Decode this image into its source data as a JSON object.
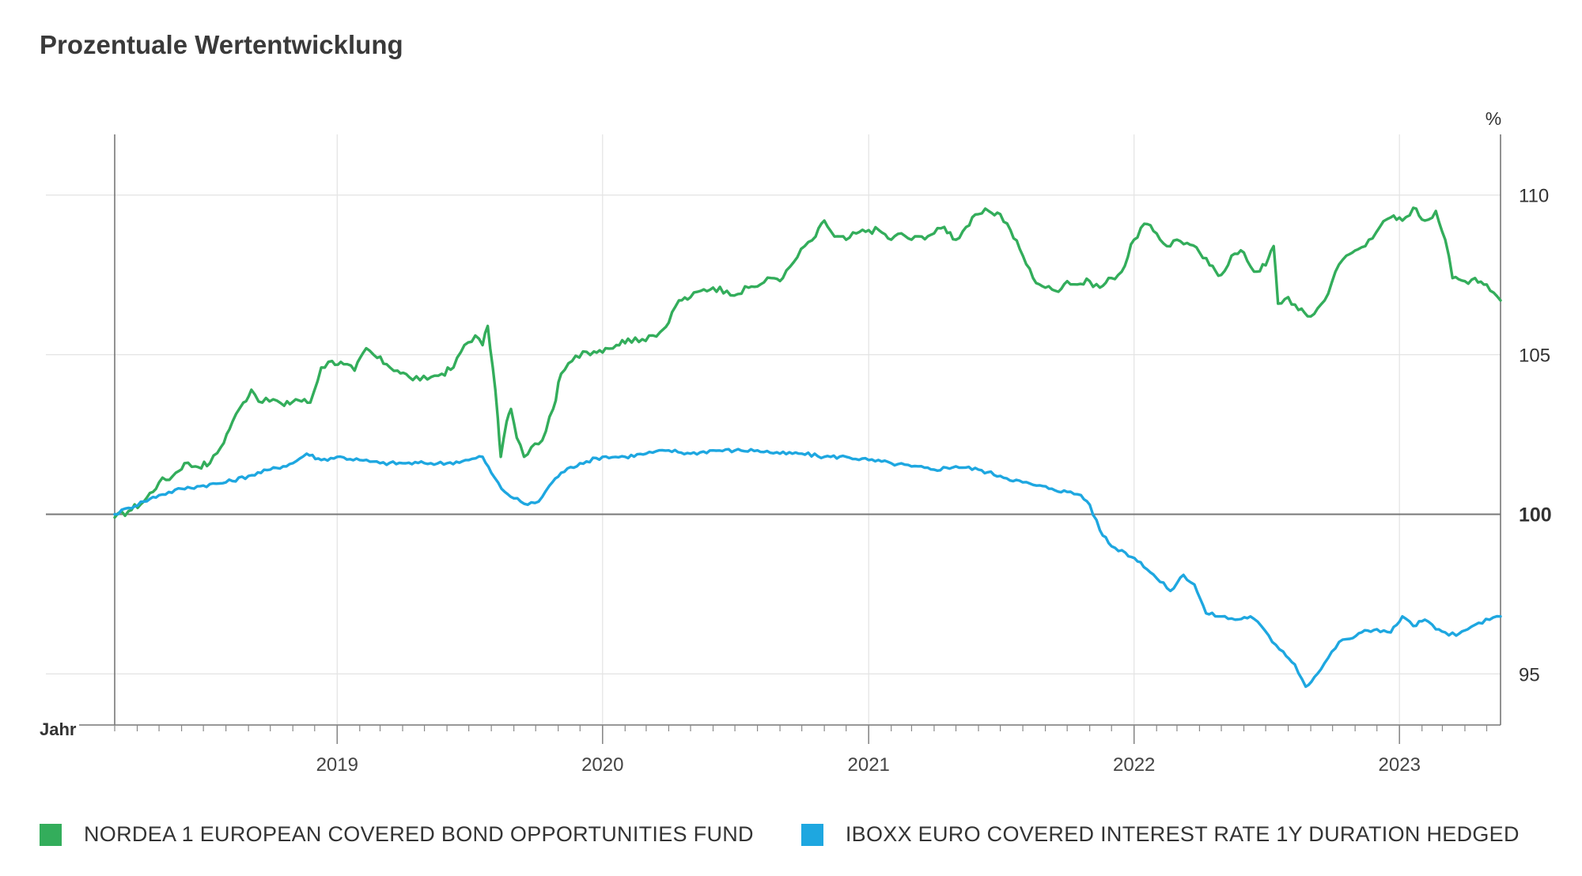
{
  "title": "Prozentuale Wertentwicklung",
  "chart_data": {
    "type": "line",
    "unit_label": "%",
    "x_axis_label": "Jahr",
    "x_tick_labels": [
      "2019",
      "2020",
      "2021",
      "2022",
      "2023"
    ],
    "x_ticks": [
      "2019-01-01",
      "2020-01-01",
      "2021-01-01",
      "2022-01-01",
      "2023-01-01"
    ],
    "xlim": [
      "2018-03-01",
      "2023-05-20"
    ],
    "y_tick_labels": [
      "110",
      "105",
      "100",
      "95"
    ],
    "y_ticks": [
      110,
      105,
      100,
      95
    ],
    "baseline": 100,
    "ylim": [
      93.4,
      111.9
    ],
    "grid": true,
    "legend_position": "bottom",
    "series": [
      {
        "name": "NORDEA 1 EUROPEAN COVERED BOND OPPORTUNITIES FUND",
        "color": "#33ad5b",
        "points": [
          [
            "2018-03-01",
            99.9
          ],
          [
            "2018-03-20",
            100.1
          ],
          [
            "2018-04-10",
            100.4
          ],
          [
            "2018-05-01",
            101.0
          ],
          [
            "2018-05-20",
            101.2
          ],
          [
            "2018-06-05",
            101.6
          ],
          [
            "2018-06-20",
            101.5
          ],
          [
            "2018-07-10",
            101.6
          ],
          [
            "2018-07-25",
            102.1
          ],
          [
            "2018-08-10",
            102.9
          ],
          [
            "2018-08-25",
            103.5
          ],
          [
            "2018-09-05",
            103.9
          ],
          [
            "2018-09-20",
            103.5
          ],
          [
            "2018-10-05",
            103.6
          ],
          [
            "2018-10-20",
            103.4
          ],
          [
            "2018-11-05",
            103.6
          ],
          [
            "2018-11-25",
            103.5
          ],
          [
            "2018-12-10",
            104.6
          ],
          [
            "2018-12-25",
            104.8
          ],
          [
            "2019-01-10",
            104.7
          ],
          [
            "2019-01-25",
            104.5
          ],
          [
            "2019-02-10",
            105.2
          ],
          [
            "2019-02-25",
            104.9
          ],
          [
            "2019-03-10",
            104.7
          ],
          [
            "2019-03-25",
            104.5
          ],
          [
            "2019-04-10",
            104.3
          ],
          [
            "2019-04-25",
            104.2
          ],
          [
            "2019-05-10",
            104.3
          ],
          [
            "2019-05-25",
            104.4
          ],
          [
            "2019-06-10",
            104.6
          ],
          [
            "2019-06-25",
            105.3
          ],
          [
            "2019-07-10",
            105.6
          ],
          [
            "2019-07-20",
            105.3
          ],
          [
            "2019-07-27",
            105.9
          ],
          [
            "2019-08-03",
            104.6
          ],
          [
            "2019-08-10",
            103.0
          ],
          [
            "2019-08-14",
            101.8
          ],
          [
            "2019-08-22",
            102.9
          ],
          [
            "2019-08-28",
            103.3
          ],
          [
            "2019-09-05",
            102.4
          ],
          [
            "2019-09-15",
            101.8
          ],
          [
            "2019-09-25",
            102.1
          ],
          [
            "2019-10-05",
            102.2
          ],
          [
            "2019-10-15",
            102.6
          ],
          [
            "2019-10-25",
            103.3
          ],
          [
            "2019-11-05",
            104.4
          ],
          [
            "2019-11-20",
            104.8
          ],
          [
            "2019-12-05",
            105.1
          ],
          [
            "2019-12-20",
            105.1
          ],
          [
            "2020-01-05",
            105.2
          ],
          [
            "2020-01-20",
            105.3
          ],
          [
            "2020-02-05",
            105.5
          ],
          [
            "2020-02-20",
            105.4
          ],
          [
            "2020-03-05",
            105.6
          ],
          [
            "2020-03-20",
            105.7
          ],
          [
            "2020-04-01",
            106.0
          ],
          [
            "2020-04-15",
            106.7
          ],
          [
            "2020-05-01",
            106.8
          ],
          [
            "2020-05-15",
            107.0
          ],
          [
            "2020-06-01",
            107.1
          ],
          [
            "2020-06-20",
            107.0
          ],
          [
            "2020-07-05",
            106.9
          ],
          [
            "2020-07-20",
            107.1
          ],
          [
            "2020-08-05",
            107.2
          ],
          [
            "2020-08-20",
            107.4
          ],
          [
            "2020-09-05",
            107.4
          ],
          [
            "2020-09-20",
            107.9
          ],
          [
            "2020-10-05",
            108.4
          ],
          [
            "2020-10-20",
            108.7
          ],
          [
            "2020-11-01",
            109.2
          ],
          [
            "2020-11-15",
            108.7
          ],
          [
            "2020-12-01",
            108.6
          ],
          [
            "2020-12-15",
            108.8
          ],
          [
            "2021-01-01",
            108.9
          ],
          [
            "2021-01-15",
            108.9
          ],
          [
            "2021-02-01",
            108.6
          ],
          [
            "2021-02-15",
            108.8
          ],
          [
            "2021-03-01",
            108.6
          ],
          [
            "2021-03-15",
            108.7
          ],
          [
            "2021-04-01",
            108.8
          ],
          [
            "2021-04-15",
            109.0
          ],
          [
            "2021-05-01",
            108.6
          ],
          [
            "2021-05-15",
            109.0
          ],
          [
            "2021-06-01",
            109.4
          ],
          [
            "2021-06-15",
            109.5
          ],
          [
            "2021-07-01",
            109.4
          ],
          [
            "2021-07-15",
            108.9
          ],
          [
            "2021-08-01",
            108.1
          ],
          [
            "2021-08-15",
            107.4
          ],
          [
            "2021-09-01",
            107.1
          ],
          [
            "2021-09-15",
            107.0
          ],
          [
            "2021-10-01",
            107.3
          ],
          [
            "2021-10-15",
            107.2
          ],
          [
            "2021-11-01",
            107.3
          ],
          [
            "2021-11-15",
            107.1
          ],
          [
            "2021-12-01",
            107.4
          ],
          [
            "2021-12-15",
            107.6
          ],
          [
            "2022-01-01",
            108.6
          ],
          [
            "2022-01-15",
            109.1
          ],
          [
            "2022-02-01",
            108.8
          ],
          [
            "2022-02-15",
            108.4
          ],
          [
            "2022-03-01",
            108.6
          ],
          [
            "2022-03-15",
            108.5
          ],
          [
            "2022-04-01",
            108.2
          ],
          [
            "2022-04-15",
            107.8
          ],
          [
            "2022-05-01",
            107.5
          ],
          [
            "2022-05-15",
            108.1
          ],
          [
            "2022-06-01",
            108.2
          ],
          [
            "2022-06-15",
            107.6
          ],
          [
            "2022-07-01",
            107.8
          ],
          [
            "2022-07-12",
            108.4
          ],
          [
            "2022-07-18",
            106.6
          ],
          [
            "2022-08-01",
            106.8
          ],
          [
            "2022-08-15",
            106.4
          ],
          [
            "2022-09-01",
            106.2
          ],
          [
            "2022-09-20",
            106.7
          ],
          [
            "2022-10-05",
            107.6
          ],
          [
            "2022-10-20",
            108.1
          ],
          [
            "2022-11-05",
            108.3
          ],
          [
            "2022-11-20",
            108.6
          ],
          [
            "2022-12-05",
            109.0
          ],
          [
            "2022-12-20",
            109.3
          ],
          [
            "2023-01-05",
            109.2
          ],
          [
            "2023-01-20",
            109.6
          ],
          [
            "2023-02-05",
            109.2
          ],
          [
            "2023-02-20",
            109.5
          ],
          [
            "2023-03-05",
            108.6
          ],
          [
            "2023-03-15",
            107.4
          ],
          [
            "2023-04-01",
            107.3
          ],
          [
            "2023-04-15",
            107.4
          ],
          [
            "2023-05-01",
            107.2
          ],
          [
            "2023-05-20",
            106.7
          ]
        ]
      },
      {
        "name": "IBOXX EURO COVERED INTEREST RATE 1Y DURATION HEDGED",
        "color": "#1ea7e0",
        "points": [
          [
            "2018-03-01",
            100.0
          ],
          [
            "2018-03-20",
            100.2
          ],
          [
            "2018-04-10",
            100.4
          ],
          [
            "2018-05-01",
            100.6
          ],
          [
            "2018-06-01",
            100.8
          ],
          [
            "2018-07-01",
            100.9
          ],
          [
            "2018-08-01",
            101.0
          ],
          [
            "2018-09-01",
            101.2
          ],
          [
            "2018-10-01",
            101.4
          ],
          [
            "2018-11-01",
            101.6
          ],
          [
            "2018-11-20",
            101.9
          ],
          [
            "2018-12-10",
            101.7
          ],
          [
            "2019-01-01",
            101.8
          ],
          [
            "2019-02-01",
            101.7
          ],
          [
            "2019-03-01",
            101.6
          ],
          [
            "2019-04-01",
            101.6
          ],
          [
            "2019-05-01",
            101.6
          ],
          [
            "2019-06-01",
            101.6
          ],
          [
            "2019-07-01",
            101.7
          ],
          [
            "2019-07-20",
            101.8
          ],
          [
            "2019-08-01",
            101.3
          ],
          [
            "2019-08-15",
            100.8
          ],
          [
            "2019-09-01",
            100.5
          ],
          [
            "2019-09-20",
            100.3
          ],
          [
            "2019-10-05",
            100.4
          ],
          [
            "2019-10-20",
            100.9
          ],
          [
            "2019-11-05",
            101.3
          ],
          [
            "2019-12-01",
            101.6
          ],
          [
            "2020-01-01",
            101.8
          ],
          [
            "2020-02-01",
            101.8
          ],
          [
            "2020-03-01",
            101.9
          ],
          [
            "2020-04-01",
            102.0
          ],
          [
            "2020-05-01",
            101.9
          ],
          [
            "2020-06-01",
            102.0
          ],
          [
            "2020-07-01",
            102.0
          ],
          [
            "2020-08-01",
            102.0
          ],
          [
            "2020-09-01",
            101.9
          ],
          [
            "2020-10-01",
            101.9
          ],
          [
            "2020-11-01",
            101.8
          ],
          [
            "2020-12-01",
            101.8
          ],
          [
            "2021-01-01",
            101.7
          ],
          [
            "2021-02-01",
            101.6
          ],
          [
            "2021-03-01",
            101.5
          ],
          [
            "2021-04-01",
            101.4
          ],
          [
            "2021-05-01",
            101.5
          ],
          [
            "2021-06-01",
            101.4
          ],
          [
            "2021-07-01",
            101.2
          ],
          [
            "2021-08-01",
            101.0
          ],
          [
            "2021-08-20",
            100.9
          ],
          [
            "2021-09-10",
            100.8
          ],
          [
            "2021-10-01",
            100.7
          ],
          [
            "2021-10-20",
            100.6
          ],
          [
            "2021-11-01",
            100.3
          ],
          [
            "2021-11-15",
            99.5
          ],
          [
            "2021-12-01",
            99.0
          ],
          [
            "2021-12-20",
            98.8
          ],
          [
            "2022-01-10",
            98.5
          ],
          [
            "2022-02-01",
            98.0
          ],
          [
            "2022-02-20",
            97.6
          ],
          [
            "2022-03-10",
            98.1
          ],
          [
            "2022-03-25",
            97.8
          ],
          [
            "2022-04-10",
            96.9
          ],
          [
            "2022-05-01",
            96.8
          ],
          [
            "2022-05-20",
            96.7
          ],
          [
            "2022-06-10",
            96.8
          ],
          [
            "2022-06-25",
            96.5
          ],
          [
            "2022-07-10",
            96.0
          ],
          [
            "2022-07-25",
            95.7
          ],
          [
            "2022-08-10",
            95.3
          ],
          [
            "2022-08-25",
            94.6
          ],
          [
            "2022-09-10",
            95.0
          ],
          [
            "2022-09-25",
            95.5
          ],
          [
            "2022-10-10",
            96.0
          ],
          [
            "2022-10-25",
            96.1
          ],
          [
            "2022-11-10",
            96.3
          ],
          [
            "2022-12-01",
            96.4
          ],
          [
            "2022-12-20",
            96.3
          ],
          [
            "2023-01-05",
            96.8
          ],
          [
            "2023-01-20",
            96.5
          ],
          [
            "2023-02-05",
            96.7
          ],
          [
            "2023-02-20",
            96.4
          ],
          [
            "2023-03-05",
            96.3
          ],
          [
            "2023-03-20",
            96.2
          ],
          [
            "2023-04-05",
            96.4
          ],
          [
            "2023-04-20",
            96.6
          ],
          [
            "2023-05-05",
            96.7
          ],
          [
            "2023-05-20",
            96.8
          ]
        ]
      }
    ]
  }
}
